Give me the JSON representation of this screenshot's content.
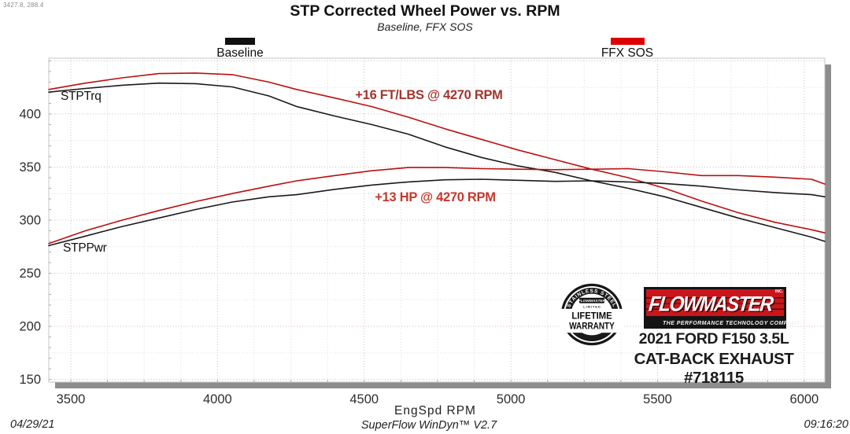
{
  "header": {
    "cursor_readout": "3427.8, 288.4",
    "title": "STP Corrected Wheel Power vs. RPM",
    "subtitle": "Baseline, FFX SOS"
  },
  "legend": {
    "baseline": {
      "label": "Baseline",
      "color": "#111111"
    },
    "ffx": {
      "label": "FFX SOS",
      "color": "#dd0000"
    }
  },
  "chart_data": {
    "type": "line",
    "title": "STP Corrected Wheel Power vs. RPM",
    "subtitle": "Baseline, FFX SOS",
    "xlabel": "EngSpd  RPM",
    "ylabel": "",
    "x_range": [
      3425,
      6070
    ],
    "y_range": [
      147.5,
      452.5
    ],
    "x_ticks": [
      3500,
      4000,
      4500,
      5000,
      5500,
      6000
    ],
    "y_ticks": [
      150,
      200,
      250,
      300,
      350,
      400
    ],
    "x_minor_step": 125,
    "y_minor_step": 25,
    "grid": true,
    "legend_position": "top",
    "x": [
      3425,
      3550,
      3675,
      3800,
      3925,
      4050,
      4175,
      4270,
      4400,
      4525,
      4650,
      4775,
      4900,
      5025,
      5150,
      5275,
      5400,
      5525,
      5650,
      5775,
      5900,
      6025,
      6070
    ],
    "series": [
      {
        "name": "Baseline STPTrq",
        "color": "#1a1a1a",
        "values": [
          420.5,
          424,
          427,
          429,
          428.5,
          425.5,
          417,
          407,
          398,
          390,
          381,
          369,
          359,
          351,
          345,
          337,
          330,
          322,
          312,
          302,
          293,
          284,
          280
        ]
      },
      {
        "name": "FFX SOS STPTrq",
        "color": "#bb0f0f",
        "values": [
          423,
          429,
          434,
          438,
          438.5,
          437,
          430,
          423,
          415,
          407,
          397,
          386,
          376,
          366,
          357,
          348,
          340,
          330,
          318,
          307,
          298,
          291,
          288
        ]
      },
      {
        "name": "Baseline STPPwr",
        "color": "#1a1a1a",
        "values": [
          276,
          285,
          294,
          302,
          310,
          317,
          322,
          324,
          329,
          333,
          336,
          338,
          338.5,
          337.5,
          336.5,
          337,
          336,
          334.5,
          332,
          328.5,
          326,
          324,
          322
        ]
      },
      {
        "name": "FFX SOS STPPwr",
        "color": "#bb0f0f",
        "values": [
          278,
          290,
          300,
          309,
          317.5,
          325,
          332,
          337,
          342,
          346.5,
          349.5,
          349.5,
          348.5,
          348,
          347.5,
          348,
          348.5,
          345.5,
          342,
          342,
          340.5,
          338.5,
          334
        ]
      }
    ],
    "curve_labels": {
      "torque": "STPTrq",
      "power": "STPPwr"
    },
    "annotations": [
      {
        "text": "+16 FT/LBS @ 4270 RPM",
        "color": "#a2362d"
      },
      {
        "text": "+13 HP @ 4270 RPM",
        "color": "#c5372c"
      }
    ]
  },
  "overlay": {
    "badge": {
      "arc_top": "STAINLESS STEEL",
      "brand": "FLOWMASTER",
      "limited": "L I M I T E D",
      "line1": "LIFETIME",
      "line2": "WARRANTY"
    },
    "logo": {
      "brand": "FLOWMASTER",
      "inc": "INC.",
      "tagline": "THE PERFORMANCE TECHNOLOGY COMPANY"
    },
    "vehicle_line1": "2021 FORD F150 3.5L",
    "vehicle_line2": "CAT-BACK EXHAUST #718115"
  },
  "footer": {
    "date": "04/29/21",
    "software": "SuperFlow WinDyn™ V2.7",
    "time": "09:16:20"
  }
}
